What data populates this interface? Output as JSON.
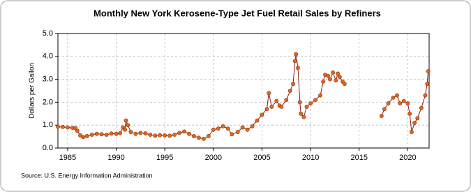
{
  "chart_data": {
    "type": "line",
    "title": "Monthly New York Kerosene-Type Jet Fuel Retail Sales by Refiners",
    "y_label": "Dollars per Gallon",
    "source": "Source: U.S. Energy Information Administration",
    "x": [
      1984.0,
      1984.5,
      1985.0,
      1985.5,
      1985.8,
      1986.0,
      1986.3,
      1986.6,
      1987.0,
      1987.5,
      1988.0,
      1988.5,
      1989.0,
      1989.5,
      1990.0,
      1990.4,
      1990.7,
      1990.9,
      1991.0,
      1991.2,
      1991.5,
      1992.0,
      1992.5,
      1993.0,
      1993.5,
      1994.0,
      1994.5,
      1995.0,
      1995.5,
      1996.0,
      1996.5,
      1997.0,
      1997.5,
      1998.0,
      1998.5,
      1999.0,
      1999.5,
      2000.0,
      2000.5,
      2001.0,
      2001.5,
      2001.9,
      2002.5,
      2003.0,
      2003.5,
      2004.0,
      2004.5,
      2005.0,
      2005.5,
      2005.7,
      2006.0,
      2006.5,
      2006.8,
      2007.0,
      2007.5,
      2007.9,
      2008.2,
      2008.4,
      2008.5,
      2008.7,
      2008.9,
      2009.0,
      2009.3,
      2009.6,
      2010.0,
      2010.5,
      2011.0,
      2011.3,
      2011.5,
      2011.8,
      2012.0,
      2012.3,
      2012.6,
      2012.8,
      2013.0,
      2013.3,
      2013.5,
      2015.0,
      2017.3,
      2017.6,
      2018.0,
      2018.5,
      2018.9,
      2019.2,
      2019.6,
      2020.0,
      2020.2,
      2020.4,
      2020.7,
      2021.0,
      2021.4,
      2021.8,
      2022.0,
      2022.1
    ],
    "series": [
      {
        "name": "New York Kerosene-Type Jet Fuel",
        "color": "#e8661c",
        "values": [
          0.93,
          0.92,
          0.9,
          0.88,
          0.87,
          0.75,
          0.55,
          0.48,
          0.52,
          0.58,
          0.62,
          0.6,
          0.58,
          0.63,
          0.62,
          0.65,
          0.9,
          0.8,
          1.2,
          1.0,
          0.7,
          0.62,
          0.66,
          0.64,
          0.58,
          0.54,
          0.56,
          0.55,
          0.54,
          0.58,
          0.66,
          0.72,
          0.62,
          0.52,
          0.45,
          0.4,
          0.52,
          0.8,
          0.85,
          0.95,
          0.85,
          0.6,
          0.7,
          0.9,
          0.8,
          0.95,
          1.2,
          1.45,
          1.7,
          2.4,
          1.8,
          2.05,
          1.85,
          1.8,
          2.1,
          2.5,
          2.8,
          3.8,
          4.1,
          3.5,
          2.0,
          1.5,
          1.35,
          1.8,
          1.95,
          2.1,
          2.3,
          2.9,
          3.2,
          3.15,
          3.0,
          3.3,
          2.95,
          3.25,
          3.1,
          2.9,
          2.8,
          null,
          1.4,
          1.7,
          1.95,
          2.2,
          2.3,
          1.95,
          2.05,
          1.95,
          1.5,
          0.7,
          1.1,
          1.3,
          1.75,
          2.3,
          2.8,
          3.35
        ]
      }
    ],
    "xlim": [
      1984,
      2022.2
    ],
    "ylim": [
      0,
      5
    ],
    "xticks": [
      1985,
      1990,
      1995,
      2000,
      2005,
      2010,
      2015,
      2020
    ],
    "yticks": [
      {
        "value": 0,
        "label": "0.0"
      },
      {
        "value": 1,
        "label": "1.0"
      },
      {
        "value": 2,
        "label": "2.0"
      },
      {
        "value": 3,
        "label": "3.0"
      },
      {
        "value": 4,
        "label": "4.0"
      },
      {
        "value": 5,
        "label": "5.0"
      }
    ],
    "grid": true
  }
}
